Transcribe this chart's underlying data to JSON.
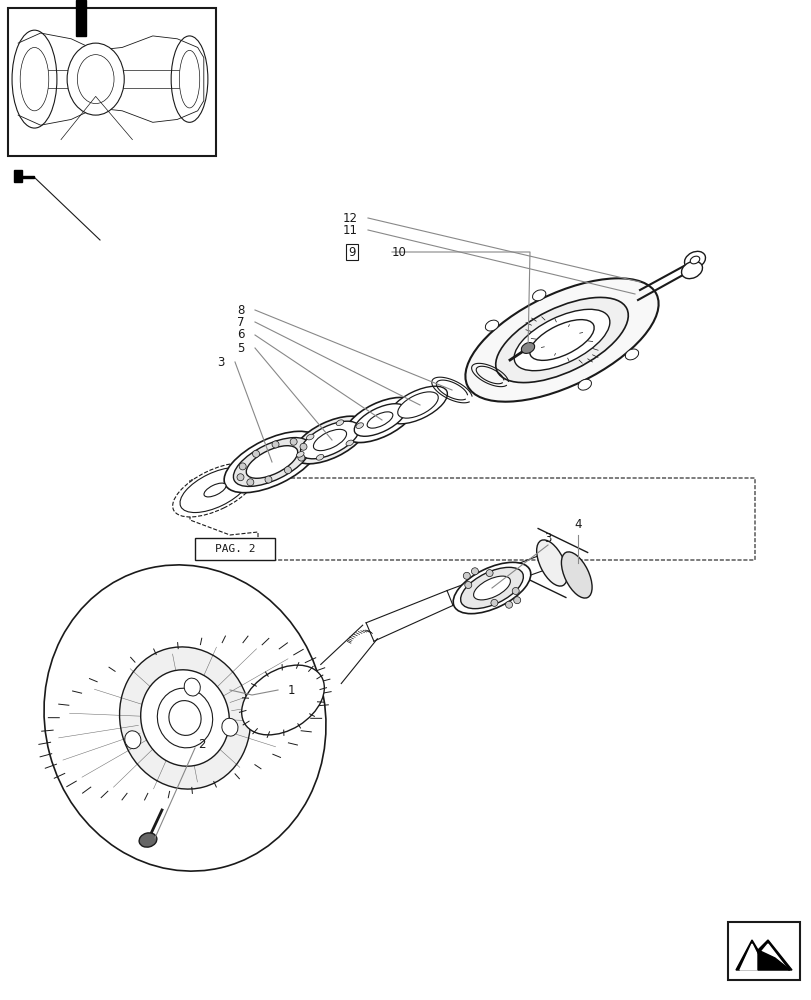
{
  "bg_color": "#ffffff",
  "line_color": "#1a1a1a",
  "gray_color": "#888888",
  "label_color": "#666666",
  "fig_width": 8.12,
  "fig_height": 10.0,
  "dpi": 100
}
